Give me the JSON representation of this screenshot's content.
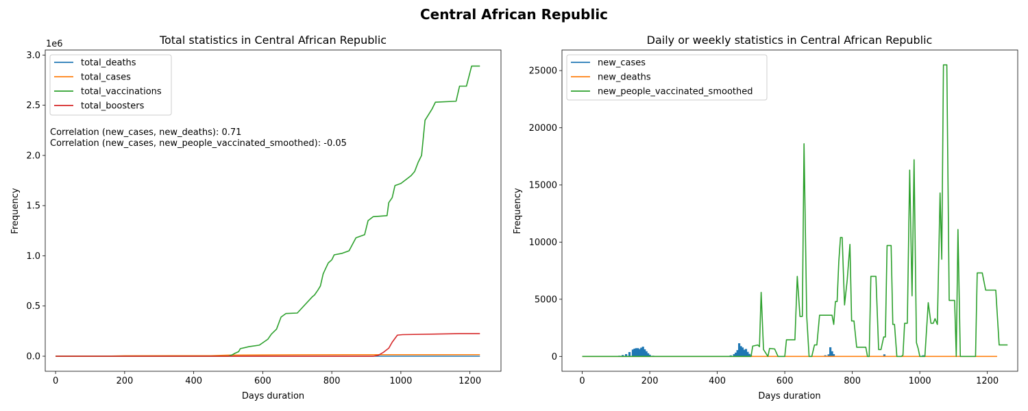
{
  "figure": {
    "suptitle": "Central African Republic"
  },
  "chart_data": [
    {
      "type": "line",
      "title": "Total statistics in Central African Republic",
      "xlabel": "Days duration",
      "ylabel": "Frequency",
      "offset_label": "1e6",
      "xlim": [
        -30,
        1290
      ],
      "ylim": [
        -150000,
        3050000
      ],
      "xticks": [
        0,
        200,
        400,
        600,
        800,
        1000,
        1200
      ],
      "yticks": [
        0,
        500000,
        1000000,
        1500000,
        2000000,
        2500000,
        3000000
      ],
      "ytick_labels": [
        "0.0",
        "0.5",
        "1.0",
        "1.5",
        "2.0",
        "2.5",
        "3.0"
      ],
      "legend_position": "upper-left",
      "annotations": [
        "Correlation (new_cases, new_deaths): 0.71",
        "Correlation (new_cases, new_people_vaccinated_smoothed): -0.05"
      ],
      "series": [
        {
          "name": "total_deaths",
          "color": "#1f77b4",
          "points": [
            [
              0,
              0
            ],
            [
              200,
              100
            ],
            [
              500,
              100
            ],
            [
              1229,
              100
            ]
          ]
        },
        {
          "name": "total_cases",
          "color": "#ff7f0e",
          "points": [
            [
              0,
              0
            ],
            [
              150,
              1000
            ],
            [
              200,
              4000
            ],
            [
              450,
              5000
            ],
            [
              500,
              11000
            ],
            [
              700,
              14500
            ],
            [
              1229,
              15500
            ]
          ]
        },
        {
          "name": "total_vaccinations",
          "color": "#2ca02c",
          "points": [
            [
              0,
              0
            ],
            [
              500,
              0
            ],
            [
              512,
              15000
            ],
            [
              520,
              30000
            ],
            [
              530,
              45000
            ],
            [
              535,
              75000
            ],
            [
              560,
              95000
            ],
            [
              590,
              110000
            ],
            [
              615,
              170000
            ],
            [
              625,
              220000
            ],
            [
              640,
              270000
            ],
            [
              653,
              390000
            ],
            [
              667,
              425000
            ],
            [
              700,
              430000
            ],
            [
              743,
              590000
            ],
            [
              750,
              610000
            ],
            [
              760,
              660000
            ],
            [
              767,
              700000
            ],
            [
              775,
              820000
            ],
            [
              783,
              880000
            ],
            [
              790,
              930000
            ],
            [
              800,
              960000
            ],
            [
              807,
              1010000
            ],
            [
              830,
              1025000
            ],
            [
              850,
              1050000
            ],
            [
              870,
              1180000
            ],
            [
              895,
              1210000
            ],
            [
              905,
              1350000
            ],
            [
              920,
              1390000
            ],
            [
              960,
              1400000
            ],
            [
              965,
              1530000
            ],
            [
              975,
              1580000
            ],
            [
              983,
              1700000
            ],
            [
              1000,
              1720000
            ],
            [
              1015,
              1760000
            ],
            [
              1030,
              1800000
            ],
            [
              1040,
              1840000
            ],
            [
              1050,
              1930000
            ],
            [
              1060,
              2000000
            ],
            [
              1070,
              2350000
            ],
            [
              1090,
              2460000
            ],
            [
              1100,
              2530000
            ],
            [
              1160,
              2540000
            ],
            [
              1170,
              2690000
            ],
            [
              1190,
              2690000
            ],
            [
              1205,
              2890000
            ],
            [
              1229,
              2890000
            ]
          ]
        },
        {
          "name": "total_boosters",
          "color": "#d62728",
          "points": [
            [
              0,
              0
            ],
            [
              920,
              0
            ],
            [
              935,
              10000
            ],
            [
              950,
              40000
            ],
            [
              965,
              80000
            ],
            [
              975,
              140000
            ],
            [
              990,
              210000
            ],
            [
              1005,
              215000
            ],
            [
              1170,
              225000
            ],
            [
              1229,
              225000
            ]
          ]
        }
      ]
    },
    {
      "type": "line",
      "title": "Daily or weekly statistics in Central African Republic",
      "xlabel": "Days duration",
      "ylabel": "Frequency",
      "xlim": [
        -60,
        1290
      ],
      "ylim": [
        -1300,
        26800
      ],
      "xticks": [
        0,
        200,
        400,
        600,
        800,
        1000,
        1200
      ],
      "yticks": [
        0,
        5000,
        10000,
        15000,
        20000,
        25000
      ],
      "legend_position": "upper-left",
      "bars": {
        "name": "new_cases",
        "color": "#1f77b4",
        "points": [
          [
            100,
            30
          ],
          [
            110,
            60
          ],
          [
            120,
            120
          ],
          [
            130,
            200
          ],
          [
            140,
            380
          ],
          [
            150,
            600
          ],
          [
            155,
            680
          ],
          [
            160,
            720
          ],
          [
            165,
            720
          ],
          [
            170,
            640
          ],
          [
            175,
            760
          ],
          [
            180,
            850
          ],
          [
            185,
            620
          ],
          [
            190,
            450
          ],
          [
            195,
            280
          ],
          [
            200,
            150
          ],
          [
            210,
            60
          ],
          [
            220,
            30
          ],
          [
            430,
            40
          ],
          [
            440,
            90
          ],
          [
            450,
            200
          ],
          [
            455,
            330
          ],
          [
            460,
            550
          ],
          [
            465,
            1150
          ],
          [
            470,
            900
          ],
          [
            475,
            780
          ],
          [
            480,
            580
          ],
          [
            485,
            650
          ],
          [
            490,
            400
          ],
          [
            495,
            220
          ],
          [
            500,
            100
          ],
          [
            720,
            100
          ],
          [
            730,
            180
          ],
          [
            735,
            800
          ],
          [
            740,
            450
          ],
          [
            745,
            200
          ],
          [
            895,
            180
          ],
          [
            1010,
            100
          ]
        ]
      },
      "series": [
        {
          "name": "new_deaths",
          "color": "#ff7f0e",
          "points": [
            [
              0,
              0
            ],
            [
              1229,
              0
            ]
          ]
        },
        {
          "name": "new_people_vaccinated_smoothed",
          "color": "#2ca02c",
          "points": [
            [
              0,
              0
            ],
            [
              500,
              0
            ],
            [
              505,
              900
            ],
            [
              520,
              1000
            ],
            [
              525,
              850
            ],
            [
              530,
              5600
            ],
            [
              537,
              600
            ],
            [
              550,
              0
            ],
            [
              555,
              700
            ],
            [
              570,
              650
            ],
            [
              580,
              0
            ],
            [
              600,
              0
            ],
            [
              605,
              1450
            ],
            [
              630,
              1450
            ],
            [
              637,
              7000
            ],
            [
              645,
              3500
            ],
            [
              652,
              3500
            ],
            [
              657,
              18600
            ],
            [
              665,
              3500
            ],
            [
              672,
              0
            ],
            [
              680,
              0
            ],
            [
              688,
              1000
            ],
            [
              695,
              1000
            ],
            [
              703,
              3600
            ],
            [
              740,
              3600
            ],
            [
              745,
              2800
            ],
            [
              750,
              4800
            ],
            [
              755,
              4800
            ],
            [
              760,
              8300
            ],
            [
              765,
              10400
            ],
            [
              770,
              10400
            ],
            [
              777,
              4500
            ],
            [
              785,
              6700
            ],
            [
              793,
              9800
            ],
            [
              798,
              3100
            ],
            [
              805,
              3100
            ],
            [
              813,
              800
            ],
            [
              840,
              800
            ],
            [
              845,
              0
            ],
            [
              850,
              0
            ],
            [
              855,
              7000
            ],
            [
              870,
              7000
            ],
            [
              878,
              600
            ],
            [
              885,
              600
            ],
            [
              893,
              1700
            ],
            [
              898,
              1700
            ],
            [
              903,
              9700
            ],
            [
              915,
              9700
            ],
            [
              920,
              2800
            ],
            [
              925,
              2800
            ],
            [
              932,
              0
            ],
            [
              945,
              0
            ],
            [
              950,
              100
            ],
            [
              955,
              2900
            ],
            [
              963,
              2900
            ],
            [
              970,
              16300
            ],
            [
              977,
              5300
            ],
            [
              983,
              17200
            ],
            [
              990,
              1200
            ],
            [
              995,
              700
            ],
            [
              1000,
              0
            ],
            [
              1005,
              0
            ],
            [
              1015,
              0
            ],
            [
              1025,
              4700
            ],
            [
              1033,
              2900
            ],
            [
              1040,
              2900
            ],
            [
              1045,
              3300
            ],
            [
              1052,
              2800
            ],
            [
              1060,
              14300
            ],
            [
              1065,
              8500
            ],
            [
              1070,
              25500
            ],
            [
              1080,
              25500
            ],
            [
              1087,
              4900
            ],
            [
              1103,
              4900
            ],
            [
              1108,
              0
            ],
            [
              1113,
              11100
            ],
            [
              1120,
              0
            ],
            [
              1165,
              0
            ],
            [
              1170,
              7300
            ],
            [
              1185,
              7300
            ],
            [
              1195,
              5800
            ],
            [
              1225,
              5800
            ],
            [
              1235,
              1000
            ],
            [
              1260,
              1000
            ]
          ]
        }
      ]
    }
  ]
}
